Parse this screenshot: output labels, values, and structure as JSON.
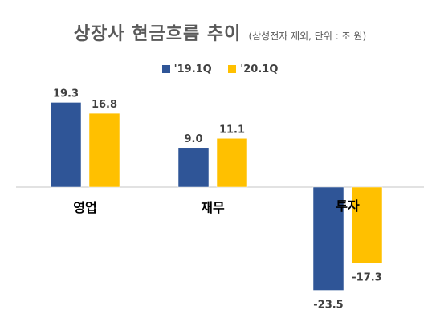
{
  "header": {
    "title": "상장사 현금흐름 추이",
    "subtitle": "(삼성전자 제외, 단위 : 조 원)"
  },
  "colors": {
    "series_2019": "#2F5597",
    "series_2020": "#FFC000",
    "axis": "#D9D9D9",
    "text": "#404040"
  },
  "chart_data": {
    "type": "bar",
    "title": "상장사 현금흐름 추이",
    "subtitle": "(삼성전자 제외, 단위 : 조 원)",
    "categories": [
      "영업",
      "재무",
      "투자"
    ],
    "series": [
      {
        "name": "'19.1Q",
        "values": [
          19.3,
          9.0,
          -23.5
        ]
      },
      {
        "name": "'20.1Q",
        "values": [
          16.8,
          11.1,
          -17.3
        ]
      }
    ],
    "value_labels": [
      [
        "19.3",
        "9.0",
        "-23.5"
      ],
      [
        "16.8",
        "11.1",
        "-17.3"
      ]
    ],
    "xlabel": "",
    "ylabel": "",
    "ylim": [
      -25,
      20
    ],
    "grid": false,
    "legend_position": "top"
  }
}
